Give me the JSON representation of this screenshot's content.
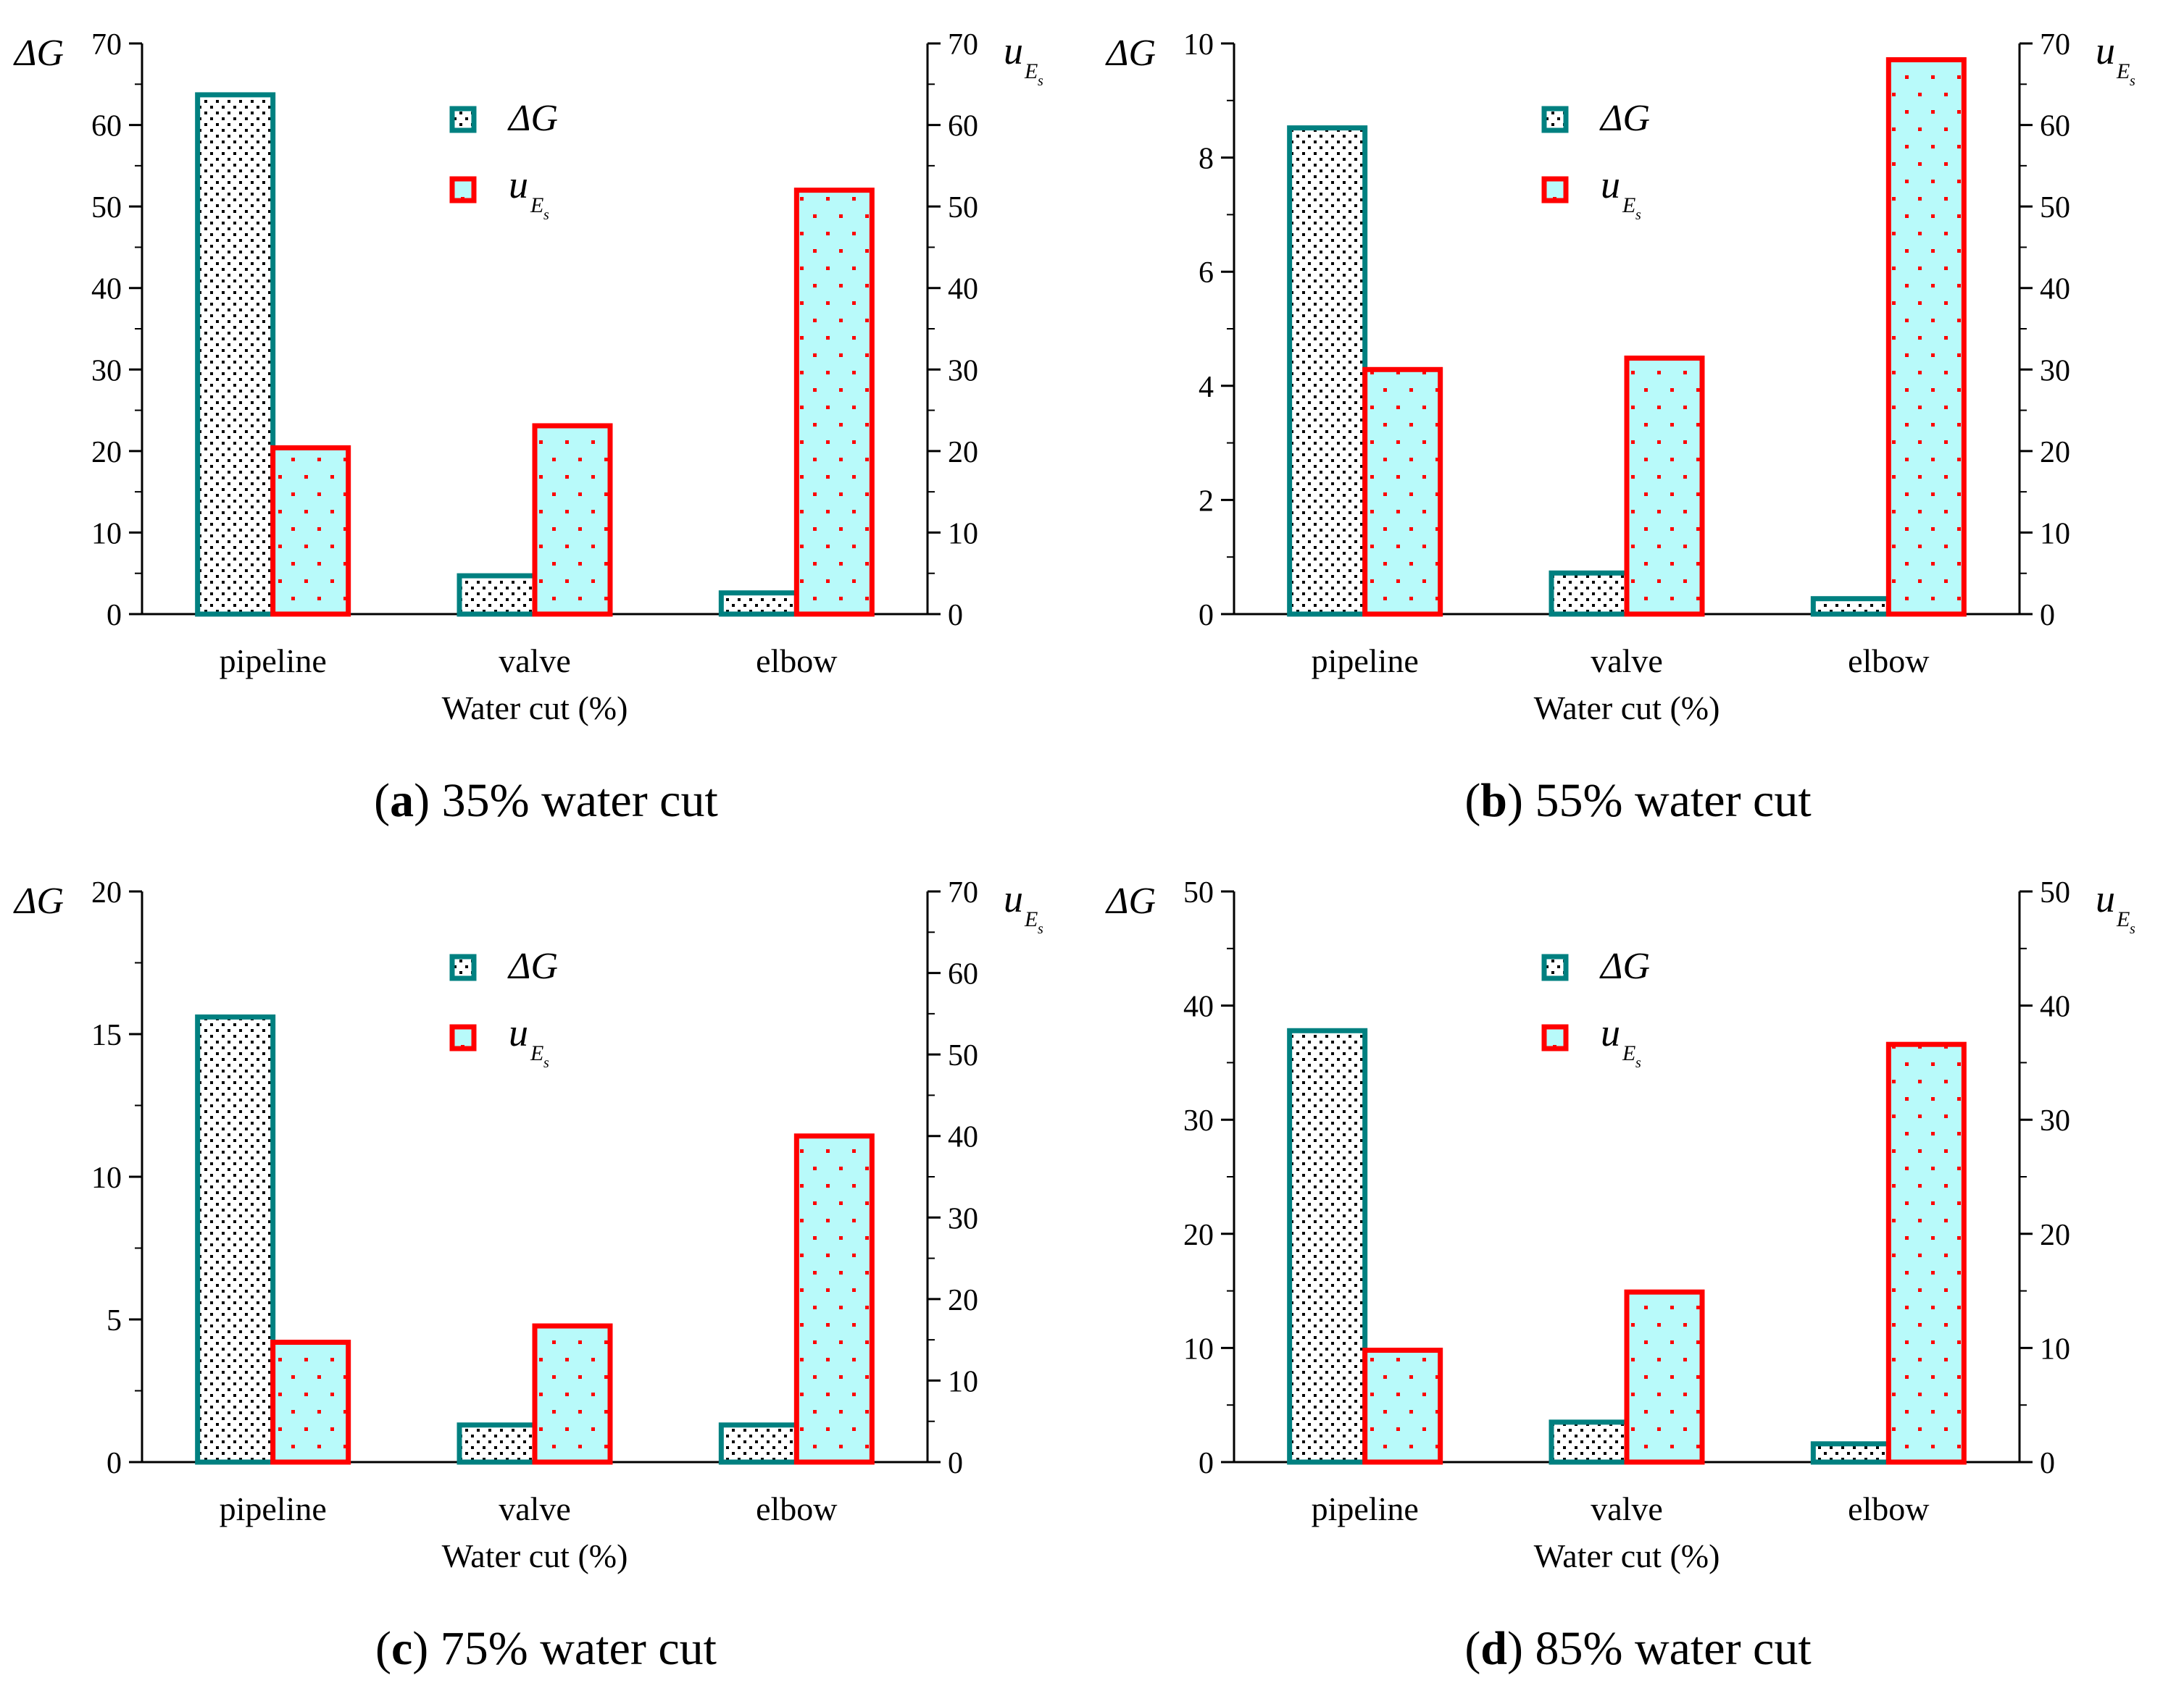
{
  "colors": {
    "dg_stroke": "#008080",
    "ue_stroke": "#ff0000",
    "ue_fill": "#b8fafa",
    "dg_fill": "#ffffff",
    "dot_dark": "#000000",
    "dot_red": "#ff0000",
    "axis": "#000000"
  },
  "chart_data": [
    {
      "type": "bar",
      "caption_label": "a",
      "caption_text": "35% water cut",
      "xlabel": "Water cut (%)",
      "left_axis_label": "ΔG",
      "right_axis_label_main": "u",
      "right_axis_label_sub": "E",
      "right_axis_label_subsub": "s",
      "legend": [
        "ΔG",
        "u"
      ],
      "categories": [
        "pipeline",
        "valve",
        "elbow"
      ],
      "left_ylim": [
        0,
        70
      ],
      "left_ticks": [
        0,
        10,
        20,
        30,
        40,
        50,
        60,
        70
      ],
      "right_ylim": [
        0,
        70
      ],
      "right_ticks": [
        0,
        10,
        20,
        30,
        40,
        50,
        60,
        70
      ],
      "series": [
        {
          "name": "ΔG",
          "axis": "left",
          "values": [
            63.7,
            4.7,
            2.6
          ]
        },
        {
          "name": "u_Es",
          "axis": "right",
          "values": [
            20.4,
            23.1,
            52.0
          ]
        }
      ]
    },
    {
      "type": "bar",
      "caption_label": "b",
      "caption_text": "55% water cut",
      "xlabel": "Water cut (%)",
      "left_axis_label": "ΔG",
      "right_axis_label_main": "u",
      "right_axis_label_sub": "E",
      "right_axis_label_subsub": "s",
      "legend": [
        "ΔG",
        "u"
      ],
      "categories": [
        "pipeline",
        "valve",
        "elbow"
      ],
      "left_ylim": [
        0,
        10
      ],
      "left_ticks": [
        0,
        2,
        4,
        6,
        8,
        10
      ],
      "right_ylim": [
        0,
        70
      ],
      "right_ticks": [
        0,
        10,
        20,
        30,
        40,
        50,
        60,
        70
      ],
      "series": [
        {
          "name": "ΔG",
          "axis": "left",
          "values": [
            8.52,
            0.72,
            0.27
          ]
        },
        {
          "name": "u_Es",
          "axis": "right",
          "values": [
            30.0,
            31.4,
            68.0
          ]
        }
      ]
    },
    {
      "type": "bar",
      "caption_label": "c",
      "caption_text": "75% water cut",
      "xlabel": "Water cut (%)",
      "left_axis_label": "ΔG",
      "right_axis_label_main": "u",
      "right_axis_label_sub": "E",
      "right_axis_label_subsub": "s",
      "legend": [
        "ΔG",
        "u"
      ],
      "categories": [
        "pipeline",
        "valve",
        "elbow"
      ],
      "left_ylim": [
        0,
        20
      ],
      "left_ticks": [
        0,
        5,
        10,
        15,
        20
      ],
      "right_ylim": [
        0,
        70
      ],
      "right_ticks": [
        0,
        10,
        20,
        30,
        40,
        50,
        60,
        70
      ],
      "series": [
        {
          "name": "ΔG",
          "axis": "left",
          "values": [
            15.6,
            1.3,
            1.3
          ]
        },
        {
          "name": "u_Es",
          "axis": "right",
          "values": [
            14.7,
            16.7,
            40.0
          ]
        }
      ]
    },
    {
      "type": "bar",
      "caption_label": "d",
      "caption_text": "85% water cut",
      "xlabel": "Water cut (%)",
      "left_axis_label": "ΔG",
      "right_axis_label_main": "u",
      "right_axis_label_sub": "E",
      "right_axis_label_subsub": "s",
      "legend": [
        "ΔG",
        "u"
      ],
      "categories": [
        "pipeline",
        "valve",
        "elbow"
      ],
      "left_ylim": [
        0,
        50
      ],
      "left_ticks": [
        0,
        10,
        20,
        30,
        40,
        50
      ],
      "right_ylim": [
        0,
        50
      ],
      "right_ticks": [
        0,
        10,
        20,
        30,
        40,
        50
      ],
      "series": [
        {
          "name": "ΔG",
          "axis": "left",
          "values": [
            37.8,
            3.5,
            1.6
          ]
        },
        {
          "name": "u_Es",
          "axis": "right",
          "values": [
            9.8,
            14.9,
            36.6
          ]
        }
      ]
    }
  ]
}
